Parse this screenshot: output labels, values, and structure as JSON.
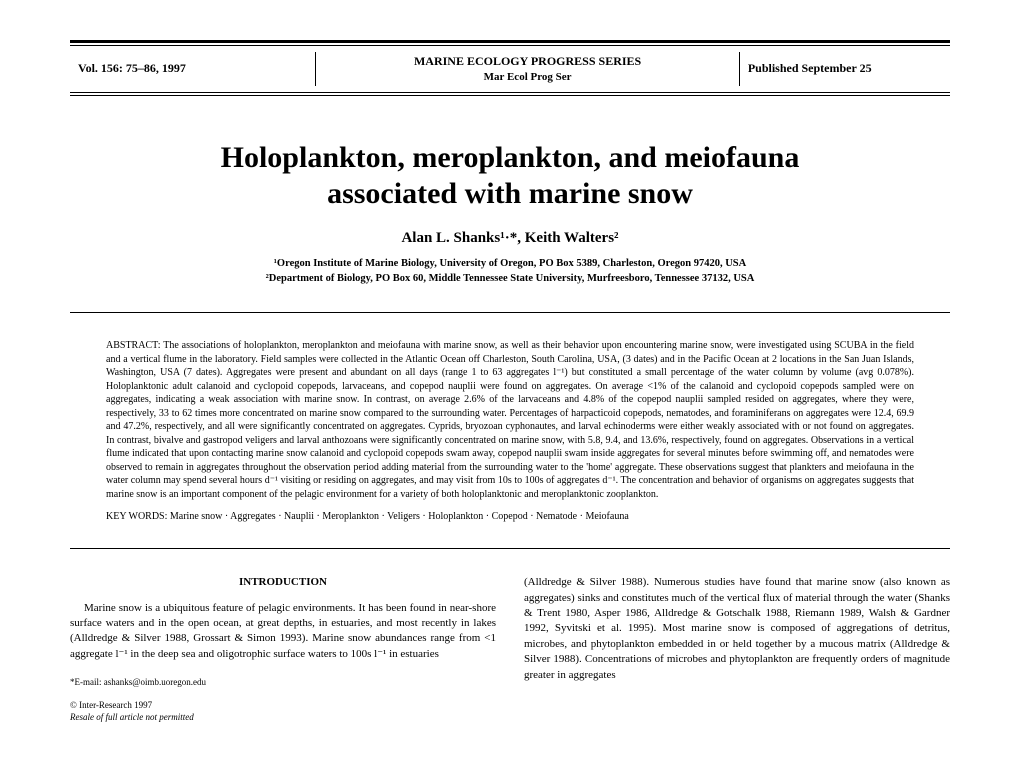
{
  "header": {
    "vol": "Vol. 156: 75–86, 1997",
    "journal_line1": "MARINE ECOLOGY PROGRESS SERIES",
    "journal_line2": "Mar Ecol Prog Ser",
    "published": "Published September 25"
  },
  "title_line1": "Holoplankton, meroplankton, and meiofauna",
  "title_line2": "associated with marine snow",
  "authors": "Alan L. Shanks¹·*, Keith Walters²",
  "affiliations_line1": "¹Oregon Institute of Marine Biology, University of Oregon, PO Box 5389, Charleston, Oregon 97420, USA",
  "affiliations_line2": "²Department of Biology, PO Box 60, Middle Tennessee State University, Murfreesboro, Tennessee 37132, USA",
  "abstract": "ABSTRACT: The associations of holoplankton, meroplankton and meiofauna with marine snow, as well as their behavior upon encountering marine snow, were investigated using SCUBA in the field and a vertical flume in the laboratory. Field samples were collected in the Atlantic Ocean off Charleston, South Carolina, USA, (3 dates) and in the Pacific Ocean at 2 locations in the San Juan Islands, Washington, USA (7 dates). Aggregates were present and abundant on all days (range 1 to 63 aggregates l⁻¹) but constituted a small percentage of the water column by volume (avg 0.078%). Holoplanktonic adult calanoid and cyclopoid copepods, larvaceans, and copepod nauplii were found on aggregates. On average <1% of the calanoid and cyclopoid copepods sampled were on aggregates, indicating a weak association with marine snow. In contrast, on average 2.6% of the larvaceans and 4.8% of the copepod nauplii sampled resided on aggregates, where they were, respectively, 33 to 62 times more concentrated on marine snow compared to the surrounding water. Percentages of harpacticoid copepods, nematodes, and foraminiferans on aggregates were 12.4, 69.9 and 47.2%, respectively, and all were significantly concentrated on aggregates. Cyprids, bryozoan cyphonautes, and larval echinoderms were either weakly associated with or not found on aggregates. In contrast, bivalve and gastropod veligers and larval anthozoans were significantly concentrated on marine snow, with 5.8, 9.4, and 13.6%, respectively, found on aggregates. Observations in a vertical flume indicated that upon contacting marine snow calanoid and cyclopoid copepods swam away, copepod nauplii swam inside aggregates for several minutes before swimming off, and nematodes were observed to remain in aggregates throughout the observation period adding material from the surrounding water to the 'home' aggregate. These observations suggest that plankters and meiofauna in the water column may spend several hours d⁻¹ visiting or residing on aggregates, and may visit from 10s to 100s of aggregates d⁻¹. The concentration and behavior of organisms on aggregates suggests that marine snow is an important component of the pelagic environment for a variety of both holoplanktonic and meroplanktonic zooplankton.",
  "keywords": "KEY WORDS: Marine snow · Aggregates · Nauplii · Meroplankton · Veligers · Holoplankton · Copepod · Nematode · Meiofauna",
  "introduction_head": "INTRODUCTION",
  "intro_p1": "Marine snow is a ubiquitous feature of pelagic environments. It has been found in near-shore surface waters and in the open ocean, at great depths, in estuaries, and most recently in lakes (Alldredge & Silver 1988, Grossart & Simon 1993). Marine snow abundances range from <1 aggregate l⁻¹ in the deep sea and oligotrophic surface waters to 100s l⁻¹ in estuaries",
  "col2_p1": "(Alldredge & Silver 1988). Numerous studies have found that marine snow (also known as aggregates) sinks and constitutes much of the vertical flux of material through the water (Shanks & Trent 1980, Asper 1986, Alldredge & Gotschalk 1988, Riemann 1989, Walsh & Gardner 1992, Syvitski et al. 1995). Most marine snow is composed of aggregations of detritus, microbes, and phytoplankton embedded in or held together by a mucous matrix (Alldredge & Silver 1988). Concentrations of microbes and phytoplankton are frequently orders of magnitude greater in aggregates",
  "email": "*E-mail: ashanks@oimb.uoregon.edu",
  "copyright_line1": "© Inter-Research 1997",
  "copyright_line2": "Resale of full article not permitted"
}
